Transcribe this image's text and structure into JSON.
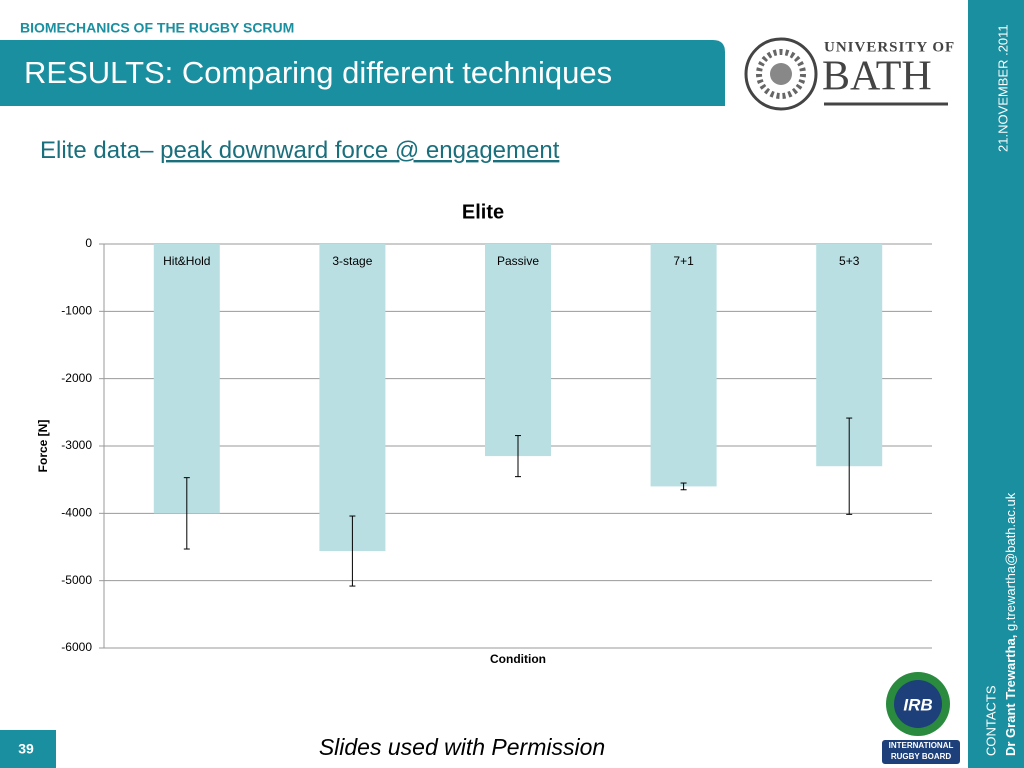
{
  "header": {
    "section": "BIOMECHANICS OF THE RUGBY SCRUM",
    "title": "RESULTS: Comparing different techniques"
  },
  "subtitle": {
    "lead": "Elite data– ",
    "topic": "peak downward force @ engagement"
  },
  "side": {
    "date": "21.NOVEMBER .2011",
    "contacts_label": "CONTACTS",
    "name": "Dr Grant Trewartha,",
    "email": "g.trewartha@bath.ac.uk"
  },
  "logos": {
    "university_line1": "UNIVERSITY OF",
    "university_line2": "BATH",
    "irb_mark": "IRB",
    "irb_line1": "INTERNATIONAL",
    "irb_line2": "RUGBY BOARD"
  },
  "footer": {
    "page_number": "39",
    "note": "Slides used with Permission"
  },
  "chart_data": {
    "type": "bar",
    "title": "Elite",
    "x_label": "Condition",
    "y_label": "Force [N]",
    "categories": [
      "Hit&Hold",
      "3-stage",
      "Passive",
      "7+1",
      "5+3"
    ],
    "values": [
      -4000,
      -4560,
      -3150,
      -3600,
      -3300
    ],
    "errors": [
      530,
      520,
      305,
      50,
      715
    ],
    "color": "#b9dfe3",
    "ylim": [
      -6000,
      0
    ],
    "yticks": [
      0,
      -1000,
      -2000,
      -3000,
      -4000,
      -5000,
      -6000
    ],
    "grid": true
  }
}
